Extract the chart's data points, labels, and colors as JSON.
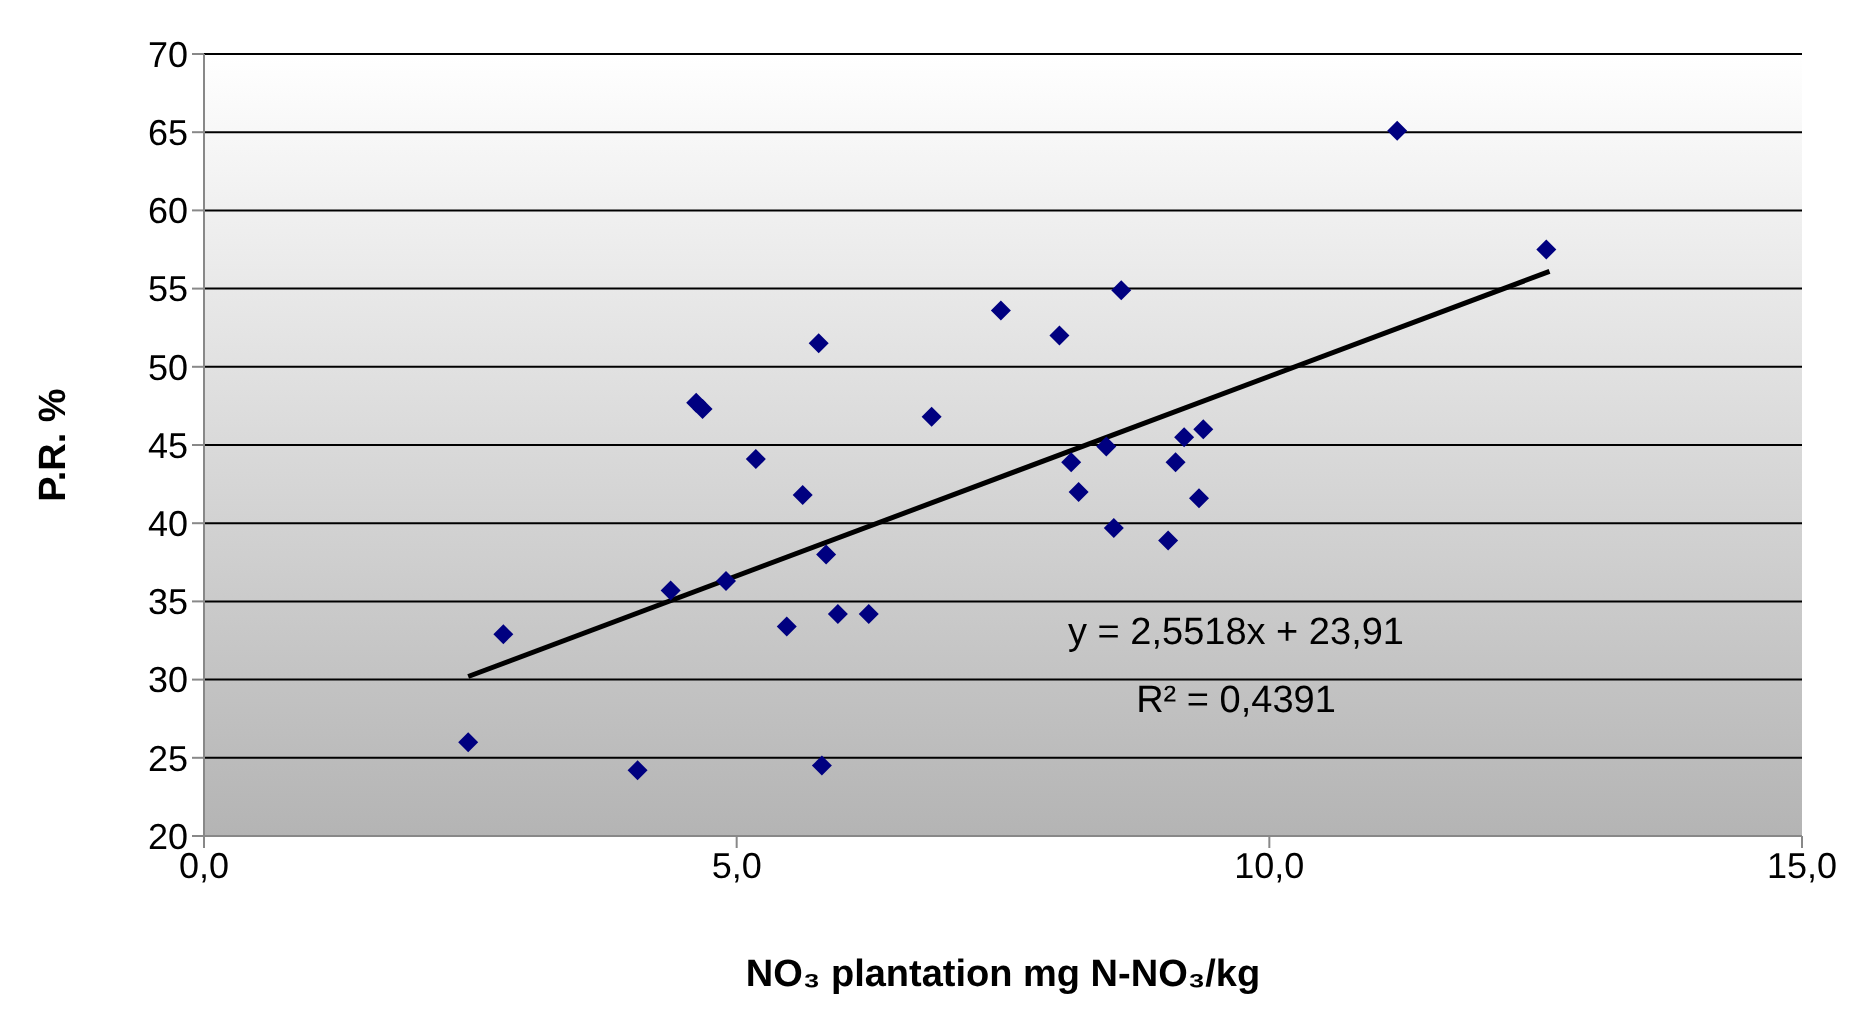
{
  "chart_data": {
    "type": "scatter",
    "xlabel": "NO₃ plantation mg N-NO₃/kg",
    "ylabel": "P.R. %",
    "xlim": [
      0,
      15
    ],
    "xticks": [
      {
        "value": 0,
        "label": "0,0"
      },
      {
        "value": 5,
        "label": "5,0"
      },
      {
        "value": 10,
        "label": "10,0"
      },
      {
        "value": 15,
        "label": "15,0"
      }
    ],
    "ylim": [
      20,
      70
    ],
    "yticks": [
      20,
      25,
      30,
      35,
      40,
      45,
      50,
      55,
      60,
      65,
      70
    ],
    "grid": "y",
    "marker": "diamond",
    "series": [
      {
        "color": "#000080",
        "x": [
          2.48,
          2.81,
          4.07,
          4.38,
          4.62,
          4.68,
          4.9,
          5.18,
          5.47,
          5.62,
          5.77,
          5.8,
          5.84,
          5.95,
          6.24,
          6.83,
          7.48,
          8.03,
          8.14,
          8.21,
          8.47,
          8.54,
          8.61,
          9.05,
          9.12,
          9.2,
          9.34,
          9.38,
          11.2,
          12.6
        ],
        "values": [
          26.0,
          32.9,
          24.2,
          35.7,
          47.7,
          47.3,
          36.3,
          44.1,
          33.4,
          41.8,
          51.5,
          24.5,
          38.0,
          34.2,
          34.2,
          46.8,
          53.6,
          52.0,
          43.9,
          42.0,
          44.9,
          39.7,
          54.9,
          38.9,
          43.9,
          45.5,
          41.6,
          46.0,
          65.1,
          57.5
        ]
      },
      {
        "type": "line",
        "color": "#000000",
        "marker": "none",
        "x": [
          2.48,
          12.63
        ],
        "values": [
          30.2,
          56.1
        ]
      }
    ],
    "annotations": [
      "y = 2,5518x + 23,91",
      "R² = 0,4391"
    ]
  }
}
